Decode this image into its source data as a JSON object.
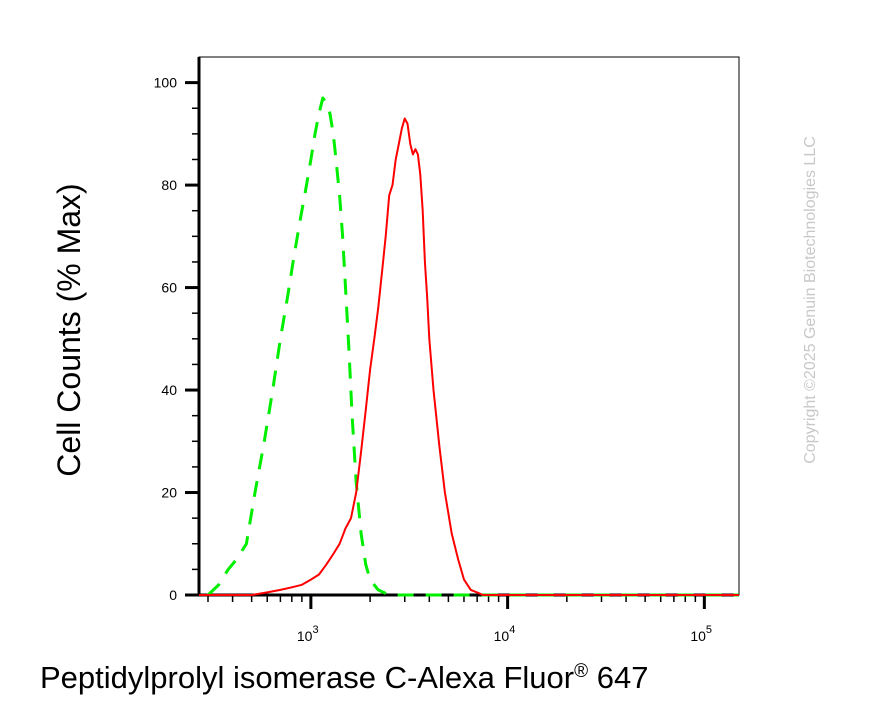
{
  "chart_data": {
    "type": "line",
    "xlabel": "Peptidylprolyl isomerase C-Alexa Fluor",
    "xlabel_sup": "®",
    "xlabel_suffix": " 647",
    "ylabel": "Cell Counts (% Max)",
    "x_scale": "log",
    "xlim": [
      270,
      150000
    ],
    "ylim": [
      0,
      105
    ],
    "y_ticks": [
      0,
      20,
      40,
      60,
      80,
      100
    ],
    "x_ticks": [
      {
        "value": 1000,
        "base": "10",
        "exp": "3"
      },
      {
        "value": 10000,
        "base": "10",
        "exp": "4"
      },
      {
        "value": 100000,
        "base": "10",
        "exp": "5"
      }
    ],
    "grid": false,
    "legend": "none",
    "series": [
      {
        "color": "#00ee00",
        "style": "dashed",
        "x": [
          300,
          340,
          380,
          420,
          470,
          520,
          580,
          640,
          700,
          760,
          820,
          880,
          940,
          1000,
          1050,
          1100,
          1150,
          1200,
          1250,
          1300,
          1350,
          1400,
          1450,
          1500,
          1560,
          1620,
          1700,
          1800,
          1900,
          2000,
          2200,
          2500,
          3000,
          4000,
          150000
        ],
        "y": [
          0,
          2,
          5,
          7,
          10,
          20,
          30,
          40,
          50,
          58,
          66,
          73,
          79,
          85,
          90,
          94,
          97,
          96,
          94,
          90,
          84,
          78,
          70,
          60,
          48,
          35,
          22,
          12,
          6,
          3,
          1,
          0,
          0,
          0,
          0
        ]
      },
      {
        "color": "#ff0000",
        "style": "solid",
        "x": [
          270,
          400,
          500,
          600,
          700,
          800,
          900,
          1000,
          1100,
          1200,
          1300,
          1400,
          1500,
          1600,
          1700,
          1800,
          1900,
          2000,
          2100,
          2200,
          2300,
          2400,
          2500,
          2600,
          2700,
          2800,
          2900,
          3000,
          3100,
          3200,
          3300,
          3400,
          3500,
          3600,
          3700,
          3800,
          3900,
          4000,
          4200,
          4500,
          4800,
          5200,
          5600,
          6000,
          6500,
          7000,
          7500,
          8000,
          9000,
          10000,
          150000
        ],
        "y": [
          0,
          0,
          0,
          0.5,
          1,
          1.5,
          2,
          3,
          4,
          6,
          8,
          10,
          13,
          15,
          20,
          28,
          36,
          44,
          50,
          56,
          63,
          70,
          78,
          80,
          85,
          88,
          91,
          93,
          92,
          88,
          86,
          87,
          86,
          82,
          75,
          65,
          58,
          50,
          40,
          29,
          20,
          12,
          7,
          3,
          1,
          0.5,
          0,
          0,
          0,
          0,
          0
        ]
      }
    ]
  },
  "watermark": "Copyright ©2025 Genuin Biotechnologies LLC"
}
